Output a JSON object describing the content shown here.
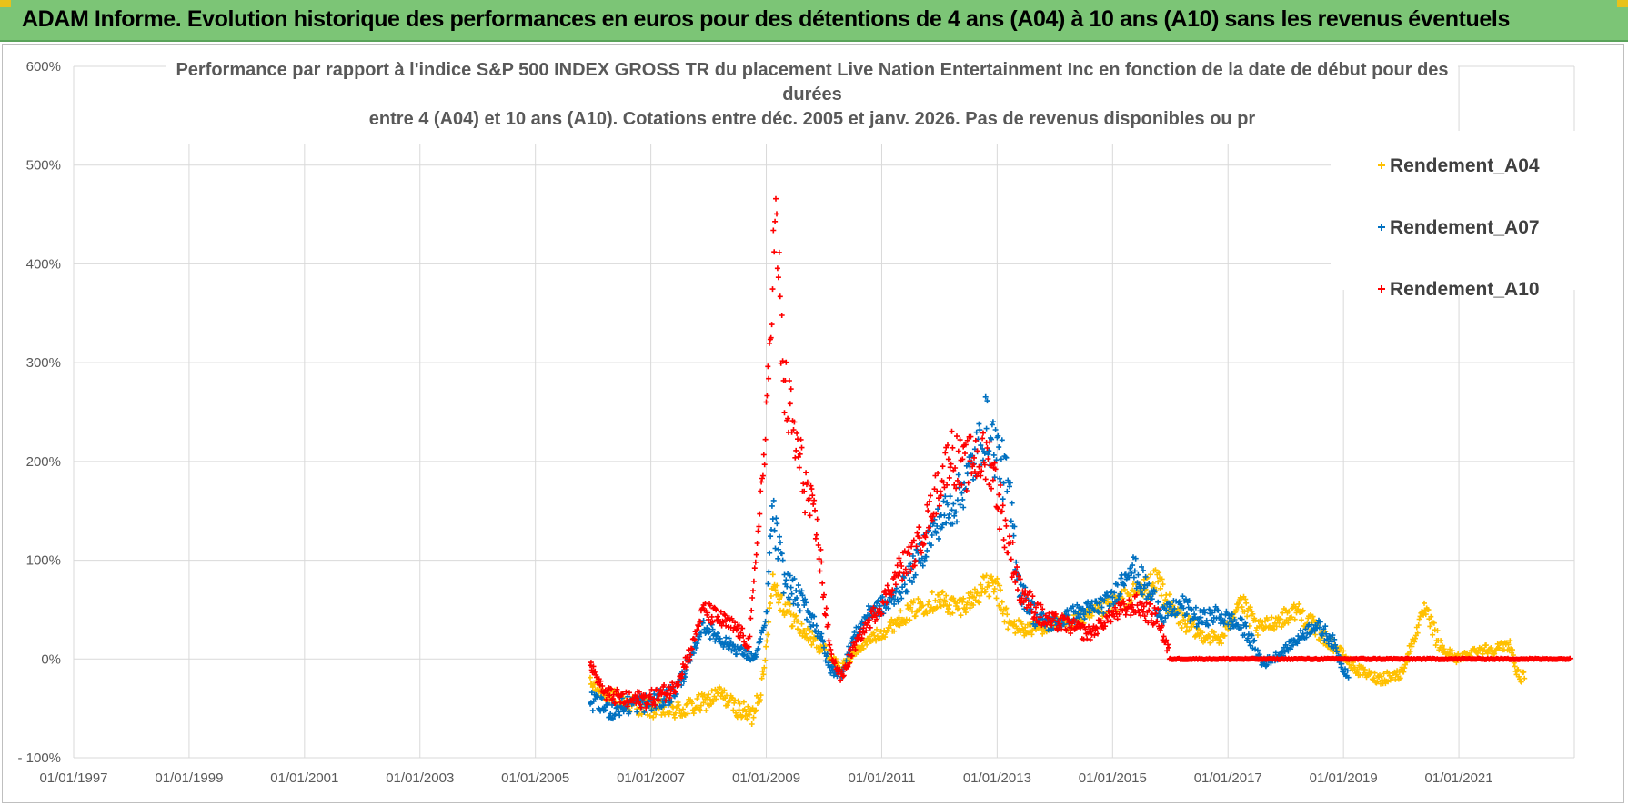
{
  "banner": {
    "title": "ADAM Informe. Evolution historique des performances en euros pour des détentions de 4 ans (A04) à 10 ans (A10) sans les revenus éventuels"
  },
  "colors": {
    "banner_bg": "#7cc576",
    "A04": "#ffc000",
    "A07": "#0070c0",
    "A10": "#ff0000",
    "grid": "#d9d9d9",
    "text": "#595959"
  },
  "chart_data": {
    "type": "scatter",
    "title_lines": [
      "Performance par rapport à l'indice S&P 500 INDEX GROSS TR  du placement Live Nation Entertainment Inc en fonction de la date de début pour des",
      "durées",
      "entre 4 (A04) et 10 ans (A10).  Cotations entre déc. 2005 et janv. 2026. Pas de revenus disponibles ou pr"
    ],
    "xlabel": "",
    "ylabel": "",
    "x_range": [
      "1997-01-01",
      "2023-01-01"
    ],
    "x_tick_labels": [
      "01/01/1997",
      "01/01/1999",
      "01/01/2001",
      "01/01/2003",
      "01/01/2005",
      "01/01/2007",
      "01/01/2009",
      "01/01/2011",
      "01/01/2013",
      "01/01/2015",
      "01/01/2017",
      "01/01/2019",
      "01/01/2021"
    ],
    "ylim": [
      -100,
      600
    ],
    "y_tick_labels": [
      "600%",
      "500%",
      "400%",
      "300%",
      "200%",
      "100%",
      "0%",
      "- 100%"
    ],
    "legend_position": "top-right",
    "legend": [
      "Rendement_A04",
      "Rendement_A07",
      "Rendement_A10"
    ],
    "marker": "+",
    "series": [
      {
        "name": "Rendement_A04",
        "color": "#ffc000",
        "points": [
          [
            2005.95,
            -25
          ],
          [
            2006.3,
            -38
          ],
          [
            2006.6,
            -45
          ],
          [
            2007.0,
            -50
          ],
          [
            2007.5,
            -52
          ],
          [
            2007.9,
            -45
          ],
          [
            2008.2,
            -35
          ],
          [
            2008.5,
            -50
          ],
          [
            2008.75,
            -58
          ],
          [
            2008.95,
            -20
          ],
          [
            2009.1,
            80
          ],
          [
            2009.3,
            55
          ],
          [
            2009.6,
            30
          ],
          [
            2010.0,
            10
          ],
          [
            2010.3,
            -10
          ],
          [
            2010.5,
            5
          ],
          [
            2010.8,
            20
          ],
          [
            2011.1,
            30
          ],
          [
            2011.4,
            45
          ],
          [
            2011.7,
            55
          ],
          [
            2012.0,
            60
          ],
          [
            2012.3,
            52
          ],
          [
            2012.6,
            62
          ],
          [
            2012.8,
            75
          ],
          [
            2013.0,
            70
          ],
          [
            2013.2,
            35
          ],
          [
            2013.5,
            30
          ],
          [
            2014.0,
            35
          ],
          [
            2014.5,
            40
          ],
          [
            2015.0,
            55
          ],
          [
            2015.5,
            70
          ],
          [
            2015.8,
            80
          ],
          [
            2016.0,
            50
          ],
          [
            2016.5,
            25
          ],
          [
            2016.9,
            20
          ],
          [
            2017.2,
            60
          ],
          [
            2017.5,
            30
          ],
          [
            2017.9,
            40
          ],
          [
            2018.2,
            50
          ],
          [
            2018.6,
            25
          ],
          [
            2018.9,
            10
          ],
          [
            2019.2,
            -10
          ],
          [
            2019.6,
            -20
          ],
          [
            2020.0,
            -15
          ],
          [
            2020.4,
            50
          ],
          [
            2020.7,
            10
          ],
          [
            2021.0,
            0
          ],
          [
            2021.3,
            10
          ],
          [
            2021.6,
            10
          ],
          [
            2021.9,
            15
          ],
          [
            2022.0,
            -15
          ],
          [
            2022.15,
            -20
          ]
        ]
      },
      {
        "name": "Rendement_A07",
        "color": "#0070c0",
        "points": [
          [
            2005.95,
            -42
          ],
          [
            2006.3,
            -52
          ],
          [
            2006.7,
            -45
          ],
          [
            2007.0,
            -45
          ],
          [
            2007.4,
            -35
          ],
          [
            2007.7,
            0
          ],
          [
            2007.9,
            35
          ],
          [
            2008.2,
            20
          ],
          [
            2008.5,
            10
          ],
          [
            2008.8,
            0
          ],
          [
            2009.0,
            40
          ],
          [
            2009.1,
            150
          ],
          [
            2009.3,
            80
          ],
          [
            2009.6,
            60
          ],
          [
            2009.9,
            30
          ],
          [
            2010.1,
            -10
          ],
          [
            2010.3,
            -15
          ],
          [
            2010.5,
            20
          ],
          [
            2010.8,
            50
          ],
          [
            2011.1,
            55
          ],
          [
            2011.4,
            75
          ],
          [
            2011.7,
            110
          ],
          [
            2012.0,
            140
          ],
          [
            2012.3,
            160
          ],
          [
            2012.6,
            200
          ],
          [
            2012.8,
            235
          ],
          [
            2013.0,
            210
          ],
          [
            2013.2,
            170
          ],
          [
            2013.4,
            70
          ],
          [
            2013.7,
            40
          ],
          [
            2014.0,
            35
          ],
          [
            2014.3,
            45
          ],
          [
            2014.6,
            50
          ],
          [
            2015.0,
            60
          ],
          [
            2015.3,
            95
          ],
          [
            2015.6,
            70
          ],
          [
            2015.9,
            45
          ],
          [
            2016.2,
            55
          ],
          [
            2016.5,
            40
          ],
          [
            2016.8,
            45
          ],
          [
            2017.0,
            40
          ],
          [
            2017.3,
            30
          ],
          [
            2017.6,
            -5
          ],
          [
            2017.9,
            5
          ],
          [
            2018.2,
            20
          ],
          [
            2018.5,
            35
          ],
          [
            2018.8,
            20
          ],
          [
            2019.0,
            -10
          ],
          [
            2019.1,
            -15
          ]
        ]
      },
      {
        "name": "Rendement_A10",
        "color": "#ff0000",
        "points": [
          [
            2005.95,
            -5
          ],
          [
            2006.2,
            -35
          ],
          [
            2006.6,
            -42
          ],
          [
            2007.0,
            -40
          ],
          [
            2007.4,
            -30
          ],
          [
            2007.7,
            10
          ],
          [
            2007.9,
            50
          ],
          [
            2008.2,
            40
          ],
          [
            2008.5,
            30
          ],
          [
            2008.7,
            15
          ],
          [
            2008.9,
            160
          ],
          [
            2009.0,
            230
          ],
          [
            2009.15,
            450
          ],
          [
            2009.3,
            280
          ],
          [
            2009.5,
            220
          ],
          [
            2009.7,
            170
          ],
          [
            2009.9,
            120
          ],
          [
            2010.1,
            10
          ],
          [
            2010.3,
            -20
          ],
          [
            2010.5,
            10
          ],
          [
            2010.8,
            40
          ],
          [
            2011.0,
            55
          ],
          [
            2011.3,
            90
          ],
          [
            2011.6,
            110
          ],
          [
            2011.9,
            160
          ],
          [
            2012.2,
            210
          ],
          [
            2012.4,
            190
          ],
          [
            2012.6,
            205
          ],
          [
            2012.9,
            200
          ],
          [
            2013.1,
            140
          ],
          [
            2013.4,
            70
          ],
          [
            2013.8,
            40
          ],
          [
            2014.2,
            35
          ],
          [
            2014.6,
            25
          ],
          [
            2015.0,
            45
          ],
          [
            2015.4,
            55
          ],
          [
            2015.8,
            40
          ],
          [
            2016.0,
            0
          ],
          [
            2017.0,
            0
          ],
          [
            2018.0,
            0
          ],
          [
            2019.0,
            0
          ],
          [
            2020.0,
            0
          ],
          [
            2021.0,
            0
          ],
          [
            2022.0,
            0
          ],
          [
            2022.95,
            0
          ]
        ]
      }
    ]
  }
}
